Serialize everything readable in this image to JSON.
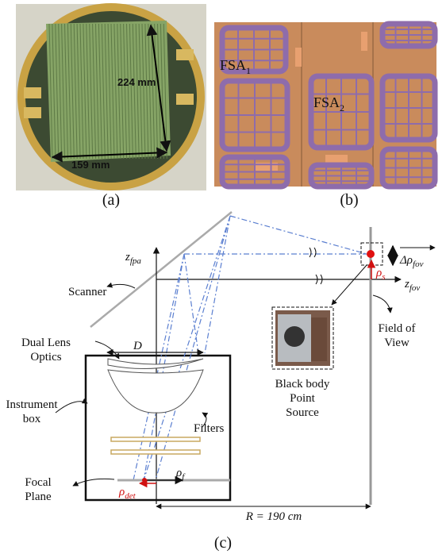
{
  "panel_a": {
    "label": "(a)",
    "height_label": "224 mm",
    "width_label": "159 mm"
  },
  "panel_b": {
    "label": "(b)",
    "fsa1": {
      "base": "FSA",
      "sub": "1"
    },
    "fsa2": {
      "base": "FSA",
      "sub": "2"
    }
  },
  "panel_c": {
    "label": "(c)",
    "z_fpa": {
      "base": "z",
      "sub": "fpa"
    },
    "delta_rho_fov": {
      "base": "Δρ",
      "sub": "fov"
    },
    "rho_s": {
      "base": "ρ",
      "sub": "s"
    },
    "z_fov": {
      "base": "z",
      "sub": "fov"
    },
    "scanner": "Scanner",
    "lens_optics": [
      "Dual Lens",
      "Optics"
    ],
    "aperture": "D",
    "field_of_view": [
      "Field of",
      "View"
    ],
    "black_body": [
      "Black body",
      "Point",
      "Source"
    ],
    "instrument_box": [
      "Instrument",
      "box"
    ],
    "filters": "Filters",
    "rho_f": {
      "base": "ρ",
      "sub": "f"
    },
    "focal_plane": [
      "Focal",
      "Plane"
    ],
    "rho_det": {
      "base": "ρ",
      "sub": "det"
    },
    "distance": "R = 190 cm"
  }
}
